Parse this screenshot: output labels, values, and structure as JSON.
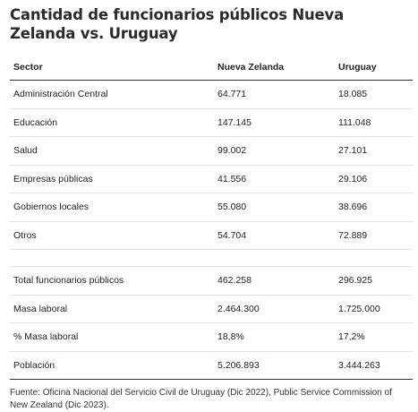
{
  "title": "Cantidad de funcionarios públicos Nueva Zelanda vs. Uruguay",
  "table": {
    "headers": [
      "Sector",
      "Nueva Zelanda",
      "Uruguay"
    ],
    "rows_top": [
      [
        "Administración Central",
        "64.771",
        "18.085"
      ],
      [
        "Educación",
        "147.145",
        "111.048"
      ],
      [
        "Salud",
        "99.002",
        "27.101"
      ],
      [
        "Empresas públicas",
        "41.556",
        "29.106"
      ],
      [
        "Gobiernos locales",
        "55.080",
        "38.696"
      ],
      [
        "Otros",
        "54.704",
        "72.889"
      ]
    ],
    "rows_bottom": [
      [
        "Total funcionarios públicos",
        "462.258",
        "296.925"
      ],
      [
        "Masa laboral",
        "2.464.300",
        "1.725.000"
      ],
      [
        "% Masa laboral",
        "18,8%",
        "17,2%"
      ],
      [
        "Población",
        "5.206.893",
        "3.444.263"
      ]
    ]
  },
  "source": "Fuente: Oficina Nacional del Servicio Civil de Uruguay (Dic 2022), Public Service Commission of New Zealand (Dic 2023)."
}
